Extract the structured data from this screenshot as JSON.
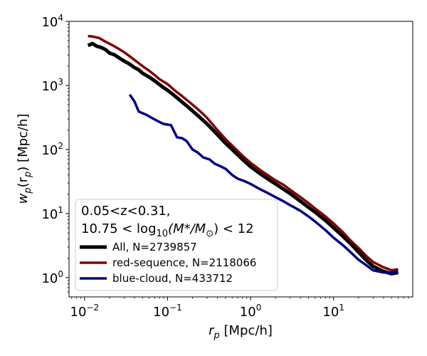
{
  "chart_data": {
    "type": "line",
    "xscale": "log",
    "yscale": "log",
    "xlim": [
      0.0065,
      90
    ],
    "ylim": [
      0.5,
      10000
    ],
    "xlabel_main": "r",
    "xlabel_sub": "p",
    "xlabel_unit": " [Mpc/h]",
    "ylabel_main": "w",
    "ylabel_sub": "p",
    "ylabel_open": "(r",
    "ylabel_close": ")",
    "ylabel_unit": " [Mpc/h]",
    "x_ticks": [
      {
        "value": 0.01,
        "base": "10",
        "exp": "−2"
      },
      {
        "value": 0.1,
        "base": "10",
        "exp": "−1"
      },
      {
        "value": 1,
        "base": "10",
        "exp": "0"
      },
      {
        "value": 10,
        "base": "10",
        "exp": "1"
      }
    ],
    "y_ticks": [
      {
        "value": 1,
        "base": "10",
        "exp": "0"
      },
      {
        "value": 10,
        "base": "10",
        "exp": "1"
      },
      {
        "value": 100,
        "base": "10",
        "exp": "2"
      },
      {
        "value": 1000,
        "base": "10",
        "exp": "3"
      },
      {
        "value": 10000,
        "base": "10",
        "exp": "4"
      }
    ],
    "legend": {
      "placement": "lower-left",
      "title_line1": "0.05<z<0.31,",
      "title_line2_a": "10.75 < log",
      "title_line2_sub": "10",
      "title_line2_b": "(M*/M",
      "title_line2_sun": "⊙",
      "title_line2_c": ") < 12"
    },
    "series": [
      {
        "name": "All, N=2739857",
        "color": "#000000",
        "width": 5,
        "x": [
          0.011,
          0.0125,
          0.014,
          0.016,
          0.018,
          0.02,
          0.023,
          0.026,
          0.03,
          0.034,
          0.04,
          0.045,
          0.05,
          0.06,
          0.07,
          0.08,
          0.09,
          0.1,
          0.12,
          0.14,
          0.17,
          0.2,
          0.25,
          0.3,
          0.4,
          0.5,
          0.6,
          0.8,
          1.0,
          1.3,
          1.6,
          2.0,
          2.5,
          3.0,
          4.0,
          5.0,
          6.0,
          8.0,
          10,
          13,
          16,
          20,
          25,
          30,
          40,
          50,
          60
        ],
        "y": [
          4200,
          4500,
          4100,
          3900,
          3600,
          3200,
          3000,
          2700,
          2400,
          2200,
          1900,
          1750,
          1550,
          1350,
          1180,
          1030,
          920,
          840,
          700,
          590,
          480,
          400,
          310,
          250,
          170,
          125,
          100,
          70,
          54,
          42,
          35,
          29,
          24,
          20.5,
          15.5,
          12.5,
          10.5,
          7.8,
          6.0,
          4.4,
          3.4,
          2.5,
          1.85,
          1.5,
          1.25,
          1.15,
          1.2
        ]
      },
      {
        "name": "red-sequence, N=2118066",
        "color": "#800000",
        "width": 3.5,
        "x": [
          0.011,
          0.0125,
          0.015,
          0.018,
          0.022,
          0.026,
          0.03,
          0.04,
          0.05,
          0.06,
          0.07,
          0.08,
          0.1,
          0.12,
          0.15,
          0.2,
          0.25,
          0.3,
          0.4,
          0.5,
          0.6,
          0.8,
          1.0,
          1.3,
          1.6,
          2.0,
          2.5,
          3.0,
          4.0,
          5.0,
          6.0,
          8.0,
          10,
          13,
          16,
          20,
          25,
          30,
          40,
          50,
          60
        ],
        "y": [
          5900,
          5800,
          5500,
          4800,
          4200,
          3700,
          3300,
          2500,
          2000,
          1700,
          1450,
          1250,
          1050,
          850,
          680,
          500,
          390,
          310,
          200,
          145,
          115,
          80,
          62,
          48,
          40,
          33,
          28,
          23.5,
          18,
          14.5,
          12,
          9.0,
          7.0,
          5.1,
          3.8,
          2.9,
          2.15,
          1.75,
          1.45,
          1.3,
          1.35
        ]
      },
      {
        "name": "blue-cloud, N=433712",
        "color": "#000080",
        "width": 3.5,
        "x": [
          0.035,
          0.04,
          0.045,
          0.055,
          0.065,
          0.075,
          0.09,
          0.11,
          0.13,
          0.15,
          0.17,
          0.2,
          0.23,
          0.27,
          0.32,
          0.37,
          0.43,
          0.5,
          0.6,
          0.7,
          0.85,
          1.0,
          1.3,
          1.6,
          2.0,
          2.5,
          3.0,
          4.0,
          5.0,
          6.0,
          8.0,
          10,
          13,
          16,
          20,
          25,
          30,
          40,
          50,
          60
        ],
        "y": [
          720,
          560,
          390,
          350,
          310,
          280,
          250,
          240,
          155,
          150,
          135,
          100,
          90,
          75,
          70,
          60,
          55,
          50,
          40,
          35,
          32,
          29,
          24,
          21,
          18,
          15.5,
          13.5,
          11,
          9.0,
          7.5,
          5.5,
          4.2,
          3.2,
          2.5,
          1.9,
          1.55,
          1.3,
          1.2,
          1.2,
          1.25
        ]
      }
    ]
  }
}
